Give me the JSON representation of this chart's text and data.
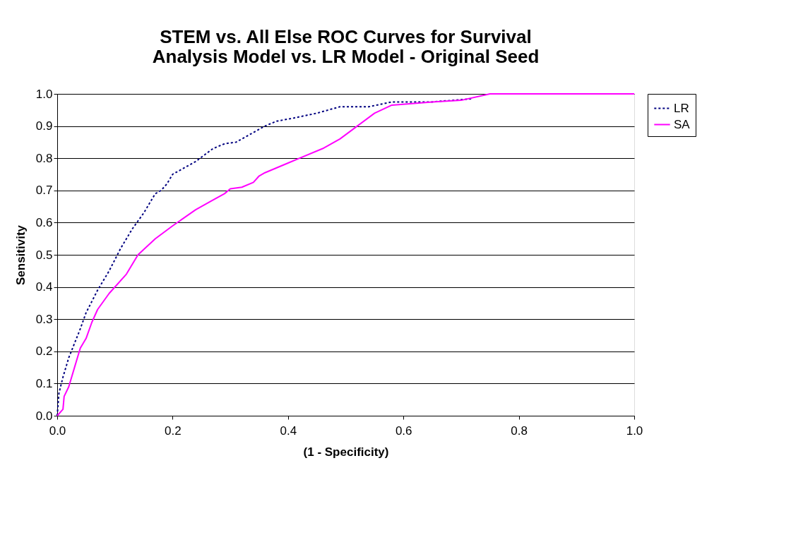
{
  "chart_data": {
    "type": "line",
    "title": [
      "STEM vs. All Else ROC Curves for Survival",
      "Analysis Model vs. LR Model - Original Seed"
    ],
    "xlabel": "(1 - Specificity)",
    "ylabel": "Sensitivity",
    "xlim": [
      0,
      1
    ],
    "ylim": [
      0,
      1
    ],
    "xticks": [
      {
        "value": 0,
        "label": "0.0"
      },
      {
        "value": 0.2,
        "label": "0.2"
      },
      {
        "value": 0.4,
        "label": "0.4"
      },
      {
        "value": 0.6,
        "label": "0.6"
      },
      {
        "value": 0.8,
        "label": "0.8"
      },
      {
        "value": 1,
        "label": "1.0"
      }
    ],
    "yticks": [
      {
        "value": 0,
        "label": "0.0"
      },
      {
        "value": 0.1,
        "label": "0.1"
      },
      {
        "value": 0.2,
        "label": "0.2"
      },
      {
        "value": 0.3,
        "label": "0.3"
      },
      {
        "value": 0.4,
        "label": "0.4"
      },
      {
        "value": 0.5,
        "label": "0.5"
      },
      {
        "value": 0.6,
        "label": "0.6"
      },
      {
        "value": 0.7,
        "label": "0.7"
      },
      {
        "value": 0.8,
        "label": "0.8"
      },
      {
        "value": 0.9,
        "label": "0.9"
      },
      {
        "value": 1,
        "label": "1.0"
      }
    ],
    "grid": "y",
    "legend": "right",
    "marker": "none",
    "series": [
      {
        "name": "LR",
        "color": "#000080",
        "line_style": "dotted",
        "x": [
          0,
          0.003,
          0.01,
          0.02,
          0.04,
          0.05,
          0.07,
          0.09,
          0.11,
          0.13,
          0.15,
          0.17,
          0.18,
          0.19,
          0.2,
          0.22,
          0.24,
          0.27,
          0.29,
          0.31,
          0.33,
          0.36,
          0.38,
          0.41,
          0.45,
          0.49,
          0.54,
          0.58,
          0.65,
          0.72
        ],
        "values": [
          0,
          0.07,
          0.12,
          0.18,
          0.27,
          0.32,
          0.39,
          0.45,
          0.52,
          0.58,
          0.63,
          0.69,
          0.7,
          0.72,
          0.75,
          0.77,
          0.79,
          0.83,
          0.845,
          0.85,
          0.87,
          0.9,
          0.915,
          0.925,
          0.94,
          0.96,
          0.96,
          0.975,
          0.975,
          0.985
        ]
      },
      {
        "name": "SA",
        "color": "#ff00ff",
        "line_style": "solid",
        "x": [
          0,
          0.01,
          0.012,
          0.02,
          0.03,
          0.04,
          0.05,
          0.06,
          0.07,
          0.09,
          0.12,
          0.14,
          0.17,
          0.2,
          0.24,
          0.27,
          0.29,
          0.3,
          0.32,
          0.34,
          0.35,
          0.36,
          0.4,
          0.42,
          0.46,
          0.49,
          0.52,
          0.55,
          0.58,
          0.65,
          0.7,
          0.75,
          1.0
        ],
        "values": [
          0,
          0.02,
          0.06,
          0.09,
          0.15,
          0.21,
          0.24,
          0.29,
          0.33,
          0.38,
          0.44,
          0.5,
          0.55,
          0.59,
          0.64,
          0.67,
          0.69,
          0.705,
          0.71,
          0.725,
          0.745,
          0.755,
          0.785,
          0.8,
          0.83,
          0.86,
          0.9,
          0.94,
          0.965,
          0.975,
          0.98,
          1.0,
          1.0
        ]
      }
    ]
  }
}
